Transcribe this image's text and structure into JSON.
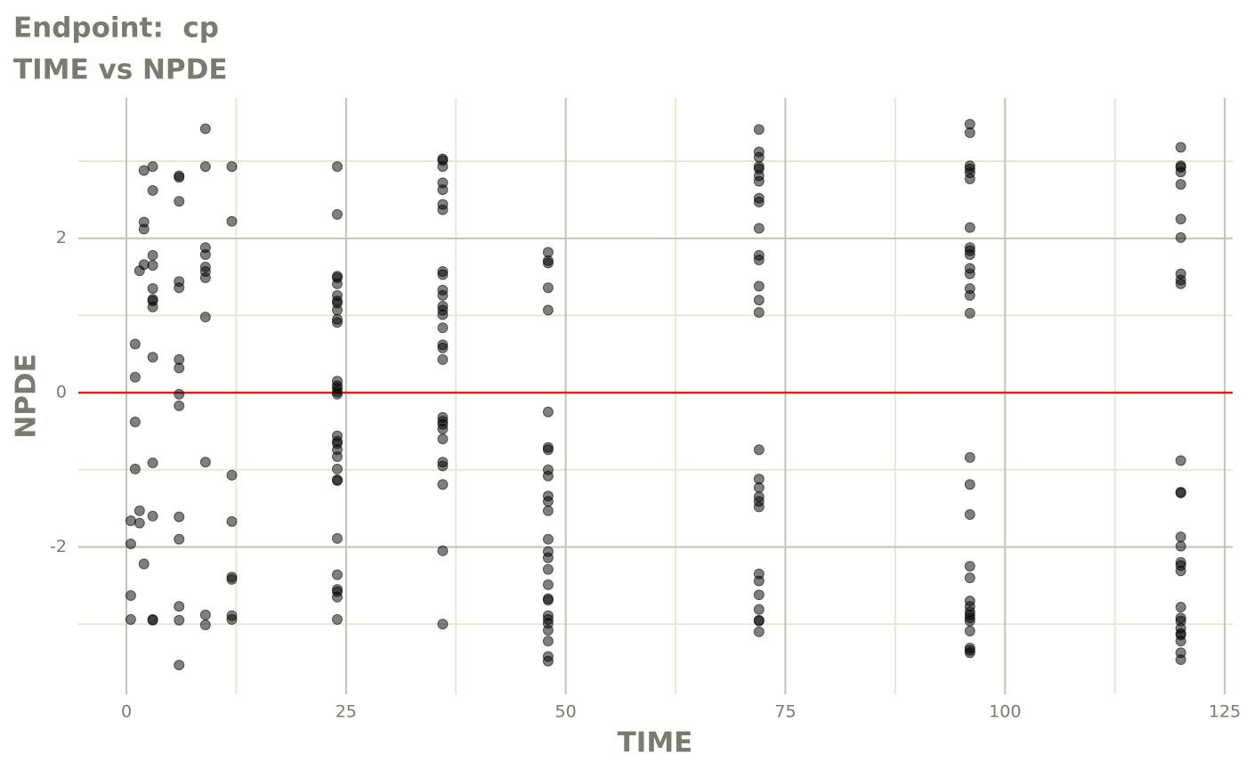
{
  "chart_data": {
    "type": "scatter",
    "title": "Endpoint:  cp",
    "subtitle": "TIME vs NPDE",
    "x_label": "TIME",
    "y_label": "NPDE",
    "color": "#000000",
    "xlim": [
      -5.47,
      125.9
    ],
    "ylim": [
      -3.91,
      3.82
    ],
    "xticks": [
      0,
      25,
      50,
      75,
      100,
      125
    ],
    "yticks": [
      -2,
      0,
      2
    ],
    "minor_xticks": [
      12.5,
      37.5,
      62.5,
      87.5,
      112.5
    ],
    "minor_yticks": [
      -3,
      -1,
      1,
      3
    ],
    "grid": true,
    "hline": 0,
    "hline_color": "#e0201b",
    "x": [
      0.5,
      0.5,
      0.5,
      0.5,
      1,
      1,
      1,
      1,
      1.5,
      1.5,
      1.5,
      2,
      2,
      2,
      2,
      2,
      3,
      3,
      3,
      3,
      3,
      3,
      3,
      3,
      3,
      3,
      3,
      3,
      3,
      6,
      6,
      6,
      6,
      6,
      6,
      6,
      6,
      6,
      6,
      6,
      6,
      6,
      6,
      9,
      9,
      9,
      9,
      9,
      9,
      9,
      9,
      9,
      9,
      9,
      12,
      12,
      12,
      12,
      12,
      12,
      12,
      12,
      24,
      24,
      24,
      24,
      24,
      24,
      24,
      24,
      24,
      24,
      24,
      24,
      24,
      24,
      24,
      24,
      24,
      24,
      24,
      24,
      24,
      24,
      24,
      24,
      24,
      24,
      24,
      24,
      24,
      24,
      36,
      36,
      36,
      36,
      36,
      36,
      36,
      36,
      36,
      36,
      36,
      36,
      36,
      36,
      36,
      36,
      36,
      36,
      36,
      36,
      36,
      36,
      36,
      36,
      36,
      36,
      36,
      36,
      48,
      48,
      48,
      48,
      48,
      48,
      48,
      48,
      48,
      48,
      48,
      48,
      48,
      48,
      48,
      48,
      48,
      48,
      48,
      48,
      48,
      48,
      48,
      48,
      48,
      48,
      48,
      72,
      72,
      72,
      72,
      72,
      72,
      72,
      72,
      72,
      72,
      72,
      72,
      72,
      72,
      72,
      72,
      72,
      72,
      72,
      72,
      72,
      72,
      72,
      72,
      72,
      72,
      72,
      72,
      96,
      96,
      96,
      96,
      96,
      96,
      96,
      96,
      96,
      96,
      96,
      96,
      96,
      96,
      96,
      96,
      96,
      96,
      96,
      96,
      96,
      96,
      96,
      96,
      96,
      96,
      96,
      96,
      96,
      96,
      120,
      120,
      120,
      120,
      120,
      120,
      120,
      120,
      120,
      120,
      120,
      120,
      120,
      120,
      120,
      120,
      120,
      120,
      120,
      120,
      120,
      120,
      120,
      120,
      120,
      120,
      120
    ],
    "y": [
      -1.66,
      -1.96,
      -2.63,
      -2.94,
      0.63,
      0.2,
      -0.38,
      -0.99,
      1.58,
      -1.53,
      -1.69,
      2.88,
      2.21,
      2.12,
      1.66,
      -2.22,
      2.93,
      2.62,
      1.78,
      1.65,
      1.35,
      1.21,
      1.19,
      1.11,
      0.46,
      -0.91,
      -1.6,
      -2.94,
      -2.95,
      2.81,
      2.79,
      2.48,
      1.44,
      1.36,
      0.43,
      0.32,
      -0.02,
      -0.17,
      -1.61,
      -1.9,
      -2.77,
      -2.95,
      -3.53,
      3.42,
      2.93,
      1.88,
      1.79,
      1.63,
      1.57,
      1.49,
      0.98,
      -0.9,
      -2.88,
      -3.01,
      2.93,
      2.22,
      -1.07,
      -1.67,
      -2.39,
      -2.42,
      -2.89,
      -2.94,
      2.93,
      2.31,
      1.51,
      1.49,
      1.41,
      1.26,
      1.19,
      1.16,
      1.07,
      0.95,
      0.91,
      0.15,
      0.09,
      0.06,
      0.01,
      -0.02,
      -0.56,
      -0.63,
      -0.66,
      -0.74,
      -0.83,
      -0.99,
      -1.13,
      -1.14,
      -1.89,
      -2.36,
      -2.55,
      -2.58,
      -2.65,
      -2.94,
      3.03,
      3.01,
      2.93,
      2.72,
      2.63,
      2.44,
      2.37,
      1.57,
      1.53,
      1.33,
      1.26,
      1.12,
      1.07,
      1.01,
      0.84,
      0.62,
      0.58,
      0.43,
      -0.32,
      -0.37,
      -0.41,
      -0.47,
      -0.6,
      -0.9,
      -0.95,
      -1.19,
      -2.05,
      -3.0,
      1.82,
      1.71,
      1.68,
      1.36,
      1.07,
      -0.25,
      -0.71,
      -0.74,
      -1.0,
      -1.08,
      -1.34,
      -1.41,
      -1.53,
      -1.9,
      -2.06,
      -2.14,
      -2.29,
      -2.49,
      -2.67,
      -2.69,
      -2.89,
      -2.94,
      -2.99,
      -3.08,
      -3.22,
      -3.42,
      -3.48,
      3.41,
      3.12,
      3.05,
      2.93,
      2.9,
      2.81,
      2.74,
      2.52,
      2.47,
      2.13,
      1.78,
      1.72,
      1.38,
      1.2,
      1.04,
      -0.74,
      -1.12,
      -1.23,
      -1.35,
      -1.41,
      -1.48,
      -2.35,
      -2.44,
      -2.62,
      -2.81,
      -2.95,
      -2.96,
      -3.1,
      3.48,
      3.37,
      2.94,
      2.9,
      2.85,
      2.77,
      2.14,
      1.88,
      1.84,
      1.79,
      1.61,
      1.54,
      1.35,
      1.26,
      1.03,
      -0.84,
      -1.19,
      -1.58,
      -2.25,
      -2.4,
      -2.7,
      -2.77,
      -2.84,
      -2.88,
      -2.92,
      -2.96,
      -3.09,
      -3.31,
      -3.34,
      -3.37,
      3.18,
      2.94,
      2.92,
      2.86,
      2.7,
      2.25,
      2.01,
      1.54,
      1.46,
      1.41,
      -0.88,
      -1.29,
      -1.3,
      -1.87,
      -1.99,
      -2.2,
      -2.24,
      -2.31,
      -2.78,
      -2.92,
      -2.96,
      -3.05,
      -3.12,
      -3.14,
      -3.22,
      -3.37,
      -3.46
    ]
  }
}
